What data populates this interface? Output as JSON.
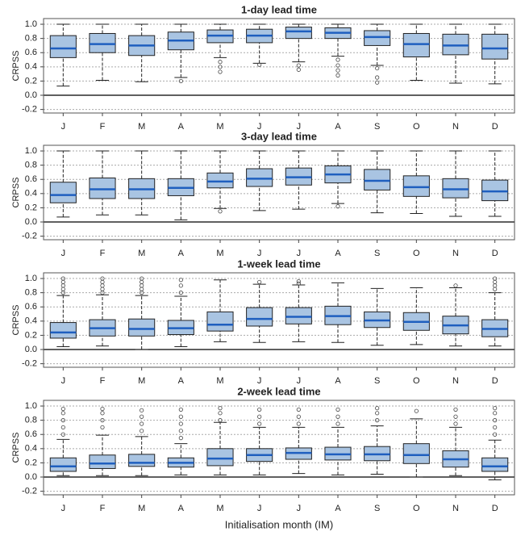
{
  "chart_data": [
    {
      "type": "box",
      "title": "1-day lead time",
      "ylabel": "CRPSS",
      "categories": [
        "J",
        "F",
        "M",
        "A",
        "M",
        "J",
        "J",
        "A",
        "S",
        "O",
        "N",
        "D"
      ],
      "whisker_low": [
        0.13,
        0.21,
        0.19,
        0.25,
        0.53,
        0.45,
        0.47,
        0.55,
        0.42,
        0.21,
        0.17,
        0.16
      ],
      "q1": [
        0.53,
        0.6,
        0.56,
        0.64,
        0.74,
        0.74,
        0.8,
        0.8,
        0.7,
        0.54,
        0.57,
        0.51
      ],
      "median": [
        0.66,
        0.72,
        0.7,
        0.77,
        0.84,
        0.84,
        0.9,
        0.88,
        0.82,
        0.72,
        0.7,
        0.66
      ],
      "q3": [
        0.84,
        0.87,
        0.84,
        0.89,
        0.92,
        0.93,
        0.96,
        0.95,
        0.91,
        0.87,
        0.86,
        0.86
      ],
      "whisker_high": [
        1.0,
        1.0,
        1.0,
        1.0,
        1.0,
        1.0,
        1.0,
        1.0,
        1.0,
        1.0,
        1.0,
        1.0
      ],
      "outliers": [
        [],
        [],
        [],
        [
          0.2
        ],
        [
          0.47,
          0.4,
          0.33
        ],
        [
          0.43
        ],
        [
          0.42,
          0.36
        ],
        [
          0.5,
          0.42,
          0.35,
          0.28
        ],
        [
          0.38,
          0.25,
          0.18
        ],
        [],
        [],
        []
      ],
      "box_color": "#a9c4e2",
      "median_color": "#1f5fbf",
      "reference_line": 0,
      "ylim": [
        -0.25,
        1.08
      ],
      "yticks": [
        -0.2,
        {
          "value": 0,
          "label": "0.0"
        },
        0.2,
        0.4,
        0.6,
        0.8,
        {
          "value": 1,
          "label": "1.0"
        }
      ],
      "grid": true
    },
    {
      "type": "box",
      "title": "3-day lead time",
      "ylabel": "CRPSS",
      "categories": [
        "J",
        "F",
        "M",
        "A",
        "M",
        "J",
        "J",
        "A",
        "S",
        "O",
        "N",
        "D"
      ],
      "whisker_low": [
        0.07,
        0.1,
        0.1,
        0.03,
        0.19,
        0.16,
        0.18,
        0.26,
        0.13,
        0.12,
        0.08,
        0.08
      ],
      "q1": [
        0.27,
        0.33,
        0.33,
        0.37,
        0.48,
        0.5,
        0.52,
        0.55,
        0.45,
        0.36,
        0.34,
        0.3
      ],
      "median": [
        0.38,
        0.46,
        0.46,
        0.48,
        0.57,
        0.61,
        0.63,
        0.67,
        0.58,
        0.49,
        0.46,
        0.43
      ],
      "q3": [
        0.56,
        0.62,
        0.61,
        0.61,
        0.69,
        0.75,
        0.76,
        0.79,
        0.74,
        0.65,
        0.61,
        0.59
      ],
      "whisker_high": [
        1.0,
        1.0,
        1.0,
        1.0,
        1.0,
        1.0,
        1.0,
        1.0,
        1.0,
        1.0,
        1.0,
        1.0
      ],
      "outliers": [
        [],
        [],
        [],
        [],
        [
          0.15
        ],
        [],
        [],
        [
          0.22
        ],
        [],
        [],
        [],
        []
      ],
      "box_color": "#a9c4e2",
      "median_color": "#1f5fbf",
      "reference_line": 0,
      "ylim": [
        -0.25,
        1.08
      ],
      "yticks": [
        -0.2,
        {
          "value": 0,
          "label": "0.0"
        },
        0.2,
        0.4,
        0.6,
        0.8,
        {
          "value": 1,
          "label": "1.0"
        }
      ],
      "grid": true
    },
    {
      "type": "box",
      "title": "1-week lead time",
      "ylabel": "CRPSS",
      "categories": [
        "J",
        "F",
        "M",
        "A",
        "M",
        "J",
        "J",
        "A",
        "S",
        "O",
        "N",
        "D"
      ],
      "whisker_low": [
        0.04,
        0.05,
        0.0,
        0.04,
        0.11,
        0.1,
        0.11,
        0.1,
        0.06,
        0.07,
        0.05,
        0.05
      ],
      "q1": [
        0.16,
        0.19,
        0.19,
        0.21,
        0.26,
        0.33,
        0.36,
        0.35,
        0.31,
        0.27,
        0.22,
        0.18
      ],
      "median": [
        0.24,
        0.3,
        0.29,
        0.3,
        0.35,
        0.43,
        0.46,
        0.47,
        0.41,
        0.39,
        0.34,
        0.29
      ],
      "q3": [
        0.38,
        0.42,
        0.43,
        0.41,
        0.53,
        0.59,
        0.59,
        0.61,
        0.53,
        0.52,
        0.47,
        0.42
      ],
      "whisker_high": [
        0.76,
        0.77,
        0.76,
        0.75,
        0.98,
        0.92,
        0.91,
        0.94,
        0.86,
        0.87,
        0.87,
        0.8
      ],
      "outliers": [
        [
          0.8,
          0.85,
          0.9,
          0.95,
          1.0
        ],
        [
          0.8,
          0.85,
          0.9,
          0.95,
          1.0
        ],
        [
          0.8,
          0.85,
          0.9,
          0.95,
          1.0
        ],
        [
          0.8,
          0.9,
          0.98
        ],
        [],
        [
          0.95
        ],
        [
          0.93,
          0.96
        ],
        [],
        [],
        [],
        [
          0.9
        ],
        [
          0.85,
          0.9,
          0.95,
          1.0
        ]
      ],
      "box_color": "#a9c4e2",
      "median_color": "#1f5fbf",
      "reference_line": 0,
      "ylim": [
        -0.25,
        1.08
      ],
      "yticks": [
        -0.2,
        {
          "value": 0,
          "label": "0.0"
        },
        0.2,
        0.4,
        0.6,
        0.8,
        {
          "value": 1,
          "label": "1.0"
        }
      ],
      "grid": true
    },
    {
      "type": "box",
      "title": "2-week lead time",
      "ylabel": "CRPSS",
      "xlabel": "Initialisation month (IM)",
      "categories": [
        "J",
        "F",
        "M",
        "A",
        "M",
        "J",
        "J",
        "A",
        "S",
        "O",
        "N",
        "D"
      ],
      "whisker_low": [
        0.02,
        0.02,
        0.02,
        0.03,
        0.03,
        0.03,
        0.05,
        0.03,
        0.04,
        0.0,
        0.02,
        -0.04
      ],
      "q1": [
        0.08,
        0.12,
        0.15,
        0.14,
        0.16,
        0.22,
        0.25,
        0.24,
        0.23,
        0.19,
        0.14,
        0.08
      ],
      "median": [
        0.15,
        0.19,
        0.2,
        0.2,
        0.26,
        0.31,
        0.34,
        0.32,
        0.32,
        0.31,
        0.25,
        0.15
      ],
      "q3": [
        0.27,
        0.31,
        0.32,
        0.27,
        0.4,
        0.4,
        0.41,
        0.42,
        0.43,
        0.47,
        0.37,
        0.27
      ],
      "whisker_high": [
        0.53,
        0.59,
        0.57,
        0.47,
        0.77,
        0.7,
        0.7,
        0.7,
        0.72,
        0.82,
        0.7,
        0.52
      ],
      "outliers": [
        [
          0.6,
          0.7,
          0.8,
          0.9,
          0.96
        ],
        [
          0.7,
          0.8,
          0.9,
          0.96
        ],
        [
          0.65,
          0.75,
          0.85,
          0.94
        ],
        [
          0.55,
          0.65,
          0.75,
          0.85,
          0.95
        ],
        [
          0.8,
          0.9,
          0.97
        ],
        [
          0.75,
          0.85,
          0.95
        ],
        [
          0.75,
          0.85,
          0.95
        ],
        [
          0.75,
          0.85,
          0.95
        ],
        [
          0.8,
          0.9,
          0.97
        ],
        [
          0.93
        ],
        [
          0.75,
          0.85,
          0.95
        ],
        [
          0.6,
          0.7,
          0.8,
          0.9,
          0.97
        ]
      ],
      "box_color": "#a9c4e2",
      "median_color": "#1f5fbf",
      "reference_line": 0,
      "ylim": [
        -0.25,
        1.08
      ],
      "yticks": [
        -0.2,
        {
          "value": 0,
          "label": "0.0"
        },
        0.2,
        0.4,
        0.6,
        0.8,
        {
          "value": 1,
          "label": "1.0"
        }
      ],
      "grid": true
    }
  ]
}
